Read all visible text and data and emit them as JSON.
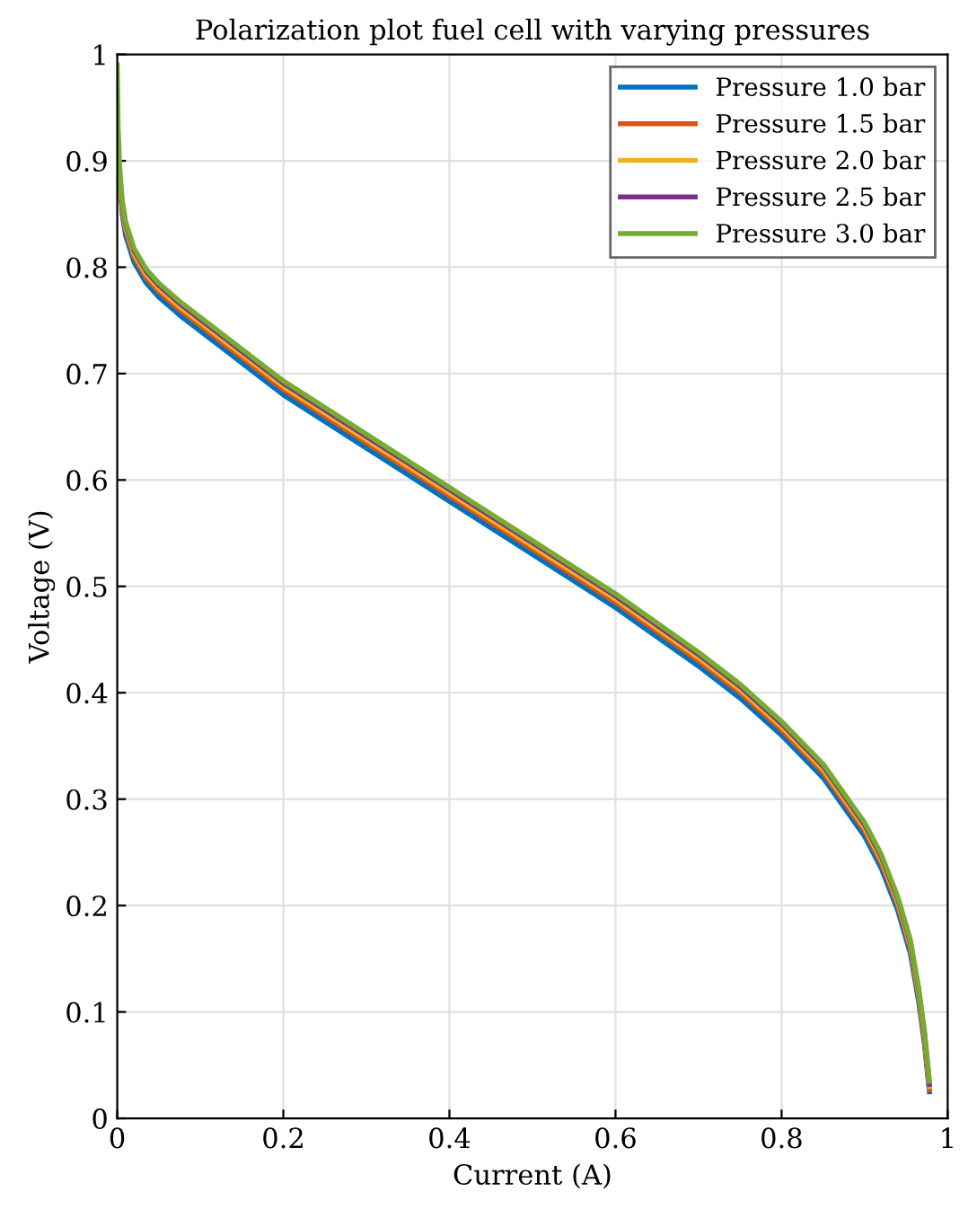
{
  "chart_data": {
    "type": "line",
    "title": "Polarization plot fuel cell with varying pressures",
    "xlabel": "Current (A)",
    "ylabel": "Voltage (V)",
    "x": [
      0,
      0.001,
      0.003,
      0.006,
      0.01,
      0.02,
      0.035,
      0.05,
      0.075,
      0.1,
      0.15,
      0.2,
      0.3,
      0.4,
      0.5,
      0.6,
      0.7,
      0.75,
      0.8,
      0.85,
      0.9,
      0.92,
      0.94,
      0.955,
      0.965,
      0.972,
      0.976,
      0.978
    ],
    "series": [
      {
        "name": "Pressure 1.0 bar",
        "color": "#0072bd",
        "values": [
          null,
          null,
          0.88,
          0.85,
          0.83,
          0.805,
          0.785,
          0.772,
          0.755,
          0.74,
          0.71,
          0.68,
          0.63,
          0.58,
          0.53,
          0.48,
          0.425,
          0.395,
          0.36,
          0.32,
          0.265,
          0.235,
          0.195,
          0.155,
          0.11,
          0.07,
          0.04,
          0.025
        ]
      },
      {
        "name": "Pressure 1.5 bar",
        "color": "#d95319",
        "values": [
          null,
          null,
          0.885,
          0.855,
          0.835,
          0.81,
          0.79,
          0.777,
          0.76,
          0.745,
          0.715,
          0.685,
          0.635,
          0.585,
          0.535,
          0.485,
          0.43,
          0.4,
          0.365,
          0.325,
          0.27,
          0.24,
          0.2,
          0.16,
          0.115,
          0.074,
          0.043,
          0.027
        ]
      },
      {
        "name": "Pressure 2.0 bar",
        "color": "#edb120",
        "values": [
          null,
          null,
          0.888,
          0.858,
          0.838,
          0.813,
          0.793,
          0.78,
          0.763,
          0.748,
          0.718,
          0.688,
          0.638,
          0.588,
          0.538,
          0.488,
          0.433,
          0.403,
          0.368,
          0.328,
          0.273,
          0.243,
          0.203,
          0.163,
          0.118,
          0.077,
          0.046,
          0.03
        ]
      },
      {
        "name": "Pressure 2.5 bar",
        "color": "#7e2f8e",
        "values": [
          null,
          null,
          null,
          0.861,
          0.841,
          0.816,
          0.796,
          0.783,
          0.766,
          0.751,
          0.721,
          0.691,
          0.641,
          0.591,
          0.541,
          0.491,
          0.436,
          0.406,
          0.371,
          0.331,
          0.276,
          0.246,
          0.206,
          0.166,
          0.121,
          0.08,
          0.049,
          0.032
        ]
      },
      {
        "name": "Pressure 3.0 bar",
        "color": "#77ac30",
        "values": [
          0.99,
          0.933,
          0.893,
          0.863,
          0.843,
          0.818,
          0.798,
          0.785,
          0.768,
          0.753,
          0.723,
          0.693,
          0.643,
          0.593,
          0.543,
          0.493,
          0.438,
          0.408,
          0.373,
          0.333,
          0.278,
          0.248,
          0.208,
          0.168,
          0.123,
          0.082,
          0.051,
          0.035
        ]
      }
    ],
    "xlim": [
      0,
      1
    ],
    "ylim": [
      0,
      1
    ],
    "xticks": [
      0,
      0.2,
      0.4,
      0.6,
      0.8,
      1
    ],
    "yticks": [
      0,
      0.1,
      0.2,
      0.3,
      0.4,
      0.5,
      0.6,
      0.7,
      0.8,
      0.9,
      1
    ],
    "grid": true,
    "legend": "top right",
    "line_style": "solid",
    "marker": "none"
  }
}
